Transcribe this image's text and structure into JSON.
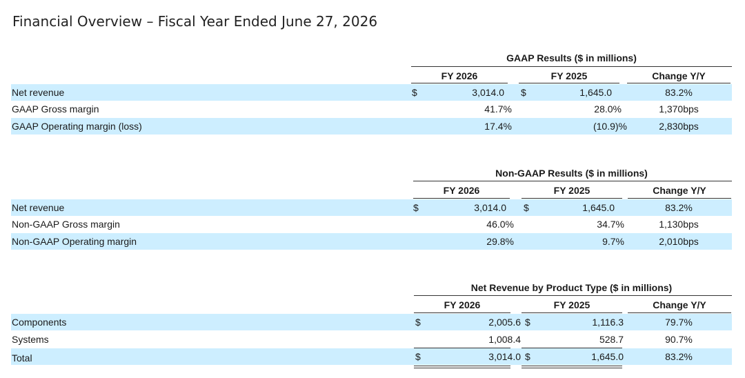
{
  "page": {
    "title": "Financial Overview – Fiscal Year Ended June 27, 2026"
  },
  "tables": {
    "gaap": {
      "title": "GAAP Results ($ in millions)",
      "columns": [
        "FY 2026",
        "FY 2025",
        "Change Y/Y"
      ],
      "rows": [
        {
          "label": "Net revenue",
          "cur_sign": "$",
          "fy2026": "3,014.0",
          "prior_sign": "$",
          "fy2025": "1,645.0",
          "change": "83.2%"
        },
        {
          "label": "GAAP Gross margin",
          "cur_sign": "",
          "fy2026": "41.7%",
          "prior_sign": "",
          "fy2025": "28.0%",
          "change": "1,370bps"
        },
        {
          "label": "GAAP Operating margin (loss)",
          "cur_sign": "",
          "fy2026": "17.4%",
          "prior_sign": "",
          "fy2025": "(10.9)%",
          "change": "2,830bps"
        }
      ]
    },
    "nongaap": {
      "title": "Non-GAAP Results ($ in millions)",
      "columns": [
        "FY 2026",
        "FY 2025",
        "Change Y/Y"
      ],
      "rows": [
        {
          "label": "Net revenue",
          "cur_sign": "$",
          "fy2026": "3,014.0",
          "prior_sign": "$",
          "fy2025": "1,645.0",
          "change": "83.2%"
        },
        {
          "label": "Non-GAAP Gross margin",
          "cur_sign": "",
          "fy2026": "46.0%",
          "prior_sign": "",
          "fy2025": "34.7%",
          "change": "1,130bps"
        },
        {
          "label": "Non-GAAP Operating margin",
          "cur_sign": "",
          "fy2026": "29.8%",
          "prior_sign": "",
          "fy2025": "9.7%",
          "change": "2,010bps"
        }
      ]
    },
    "product": {
      "title": "Net Revenue by Product Type ($ in millions)",
      "columns": [
        "FY 2026",
        "FY 2025",
        "Change Y/Y"
      ],
      "rows": [
        {
          "label": "Components",
          "cur_sign": "$",
          "fy2026": "2,005.6",
          "prior_sign": "$",
          "fy2025": "1,116.3",
          "change": "79.7%"
        },
        {
          "label": "Systems",
          "cur_sign": "",
          "fy2026": "1,008.4",
          "prior_sign": "",
          "fy2025": "528.7",
          "change": "90.7%"
        },
        {
          "label": "Total",
          "cur_sign": "$",
          "fy2026": "3,014.0",
          "prior_sign": "$",
          "fy2025": "1,645.0",
          "change": "83.2%"
        }
      ]
    }
  }
}
